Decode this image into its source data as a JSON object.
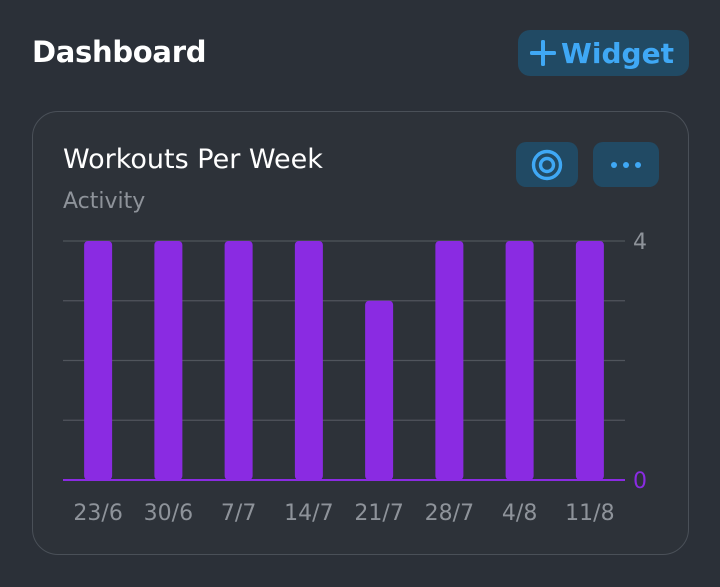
{
  "header": {
    "title": "Dashboard",
    "add_widget_label": "Widget",
    "add_icon": "plus-icon"
  },
  "card": {
    "title": "Workouts Per Week",
    "subtitle": "Activity",
    "target_icon": "target-icon",
    "more_icon": "ellipsis-icon"
  },
  "colors": {
    "background": "#2b3038",
    "accent": "#3fa8f5",
    "button_bg": "#214a64",
    "bar": "#8a2be2",
    "axis_zero": "#8a2be2",
    "grid": "#50555c",
    "muted_text": "#8e939a"
  },
  "chart_data": {
    "type": "bar",
    "categories": [
      "23/6",
      "30/6",
      "7/7",
      "14/7",
      "21/7",
      "28/7",
      "4/8",
      "11/8"
    ],
    "values": [
      4,
      4,
      4,
      4,
      3,
      4,
      4,
      4
    ],
    "title": "Workouts Per Week",
    "subtitle": "Activity",
    "ylim": [
      0,
      4
    ],
    "yticks_labeled": [
      0,
      4
    ],
    "y_axis_position": "right",
    "grid": true,
    "legend": "none"
  }
}
